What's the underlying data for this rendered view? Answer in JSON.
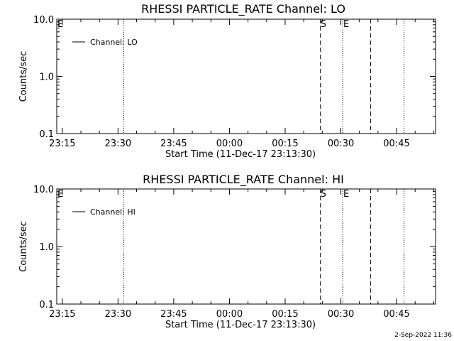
{
  "chart_data": [
    {
      "type": "line",
      "title": "RHESSI PARTICLE_RATE Channel: LO",
      "xlabel": "Start Time (11-Dec-17 23:13:30)",
      "ylabel": "Counts/sec",
      "y_scale": "log",
      "ylim": [
        0.1,
        10.0
      ],
      "y_ticks": [
        "10.0",
        "1.0",
        "0.1"
      ],
      "x_range": [
        "23:13:30",
        "00:55:30"
      ],
      "x_ticks": [
        "23:15",
        "23:30",
        "23:45",
        "00:00",
        "00:15",
        "00:30",
        "00:45"
      ],
      "series": [
        {
          "name": "Channel: LO",
          "values": []
        }
      ],
      "edge_marker": "E",
      "markers": [
        {
          "label": "S",
          "time": "00:24:30",
          "style": "dashed"
        },
        {
          "label": "E",
          "time": "00:30:30",
          "style": "dotted"
        },
        {
          "label": "",
          "time": "00:38:00",
          "style": "dashed"
        }
      ],
      "night_lines": [
        "23:31:30",
        "00:47:00"
      ],
      "legend": "upper-left",
      "grid": false
    },
    {
      "type": "line",
      "title": "RHESSI PARTICLE_RATE Channel: HI",
      "xlabel": "Start Time (11-Dec-17 23:13:30)",
      "ylabel": "Counts/sec",
      "y_scale": "log",
      "ylim": [
        0.1,
        10.0
      ],
      "y_ticks": [
        "10.0",
        "1.0",
        "0.1"
      ],
      "x_range": [
        "23:13:30",
        "00:55:30"
      ],
      "x_ticks": [
        "23:15",
        "23:30",
        "23:45",
        "00:00",
        "00:15",
        "00:30",
        "00:45"
      ],
      "series": [
        {
          "name": "Channel: HI",
          "values": []
        }
      ],
      "edge_marker": "E",
      "markers": [
        {
          "label": "S",
          "time": "00:24:30",
          "style": "dashed"
        },
        {
          "label": "E",
          "time": "00:30:30",
          "style": "dotted"
        },
        {
          "label": "",
          "time": "00:38:00",
          "style": "dashed"
        }
      ],
      "night_lines": [
        "23:31:30",
        "00:47:00"
      ],
      "legend": "upper-left",
      "grid": false
    }
  ],
  "footer": {
    "stamp": "2-Sep-2022 11:36"
  }
}
